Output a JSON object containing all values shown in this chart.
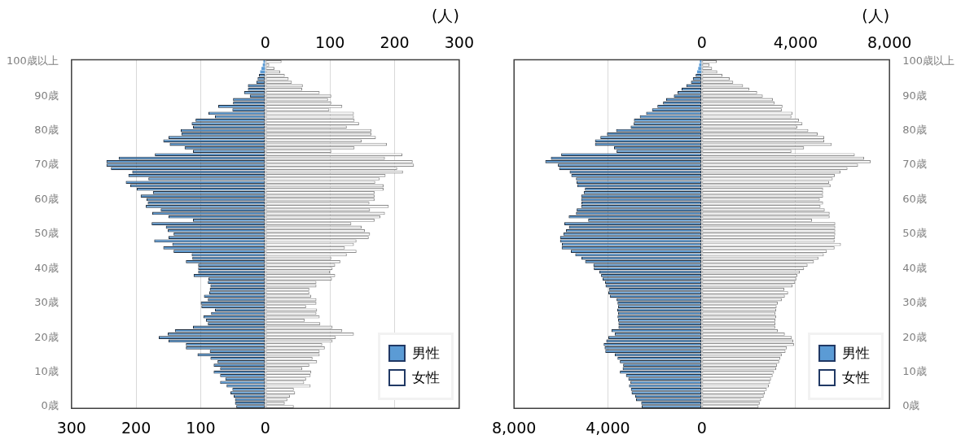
{
  "chart_data": [
    {
      "type": "bar",
      "orientation": "horizontal",
      "stacked": true,
      "x2label": "(人)",
      "categories": [
        "100歳以上",
        null,
        null,
        null,
        null,
        null,
        null,
        null,
        null,
        null,
        "90歳",
        null,
        null,
        null,
        null,
        null,
        null,
        null,
        null,
        null,
        "80歳",
        null,
        null,
        null,
        null,
        null,
        null,
        null,
        null,
        null,
        "70歳",
        null,
        null,
        null,
        null,
        null,
        null,
        null,
        null,
        null,
        "60歳",
        null,
        null,
        null,
        null,
        null,
        null,
        null,
        null,
        null,
        "50歳",
        null,
        null,
        null,
        null,
        null,
        null,
        null,
        null,
        null,
        "40歳",
        null,
        null,
        null,
        null,
        null,
        null,
        null,
        null,
        null,
        "30歳",
        null,
        null,
        null,
        null,
        null,
        null,
        null,
        null,
        null,
        "20歳",
        null,
        null,
        null,
        null,
        null,
        null,
        null,
        null,
        null,
        "10歳",
        null,
        null,
        null,
        null,
        null,
        null,
        null,
        null,
        null,
        "0歳"
      ],
      "xlim": [
        -300,
        300
      ],
      "xticks": [
        {
          "value": -300,
          "label": "300"
        },
        {
          "value": -200,
          "label": "200"
        },
        {
          "value": -100,
          "label": "100"
        },
        0
      ],
      "x2lim": [
        -300,
        300
      ],
      "x2ticks": [
        0,
        100,
        200,
        300
      ],
      "grid": "x",
      "legend": "bottom right",
      "series": [
        {
          "name": "男性",
          "color": "#5b9bd5",
          "values": [
            -3,
            -4,
            -6,
            -8,
            -10,
            -12,
            -14,
            -27,
            -27,
            -33,
            -24,
            -50,
            -50,
            -73,
            -51,
            -88,
            -78,
            -108,
            -114,
            -112,
            -131,
            -130,
            -150,
            -158,
            -148,
            -125,
            -112,
            -171,
            -227,
            -246,
            -246,
            -239,
            -206,
            -212,
            -181,
            -216,
            -209,
            -199,
            -174,
            -193,
            -184,
            -182,
            -185,
            -162,
            -175,
            -150,
            -112,
            -176,
            -154,
            -151,
            -142,
            -150,
            -172,
            -144,
            -158,
            -142,
            -114,
            -113,
            -123,
            -104,
            -104,
            -104,
            -111,
            -88,
            -89,
            -85,
            -86,
            -87,
            -95,
            -89,
            -100,
            -99,
            -78,
            -84,
            -96,
            -92,
            -89,
            -112,
            -140,
            -151,
            -165,
            -150,
            -123,
            -123,
            -86,
            -105,
            -85,
            -74,
            -80,
            -70,
            -80,
            -70,
            -62,
            -70,
            -60,
            -51,
            -54,
            -49,
            -47,
            -47,
            -45
          ]
        },
        {
          "name": "女性",
          "color": "#ffffff",
          "values": [
            25,
            6,
            14,
            23,
            30,
            36,
            41,
            58,
            57,
            84,
            102,
            97,
            102,
            119,
            99,
            137,
            137,
            138,
            145,
            126,
            164,
            164,
            171,
            149,
            188,
            138,
            102,
            212,
            185,
            228,
            230,
            204,
            213,
            186,
            177,
            170,
            183,
            183,
            169,
            169,
            169,
            161,
            191,
            162,
            185,
            178,
            169,
            133,
            149,
            154,
            162,
            160,
            141,
            137,
            123,
            141,
            126,
            102,
            116,
            108,
            104,
            100,
            108,
            103,
            79,
            79,
            68,
            68,
            71,
            79,
            79,
            63,
            80,
            79,
            84,
            61,
            85,
            104,
            119,
            137,
            109,
            104,
            88,
            92,
            84,
            84,
            73,
            80,
            68,
            57,
            71,
            70,
            63,
            60,
            70,
            44,
            46,
            38,
            34,
            30,
            44
          ]
        }
      ]
    },
    {
      "type": "bar",
      "orientation": "horizontal",
      "stacked": true,
      "x2label": "(人)",
      "categories": [
        "100歳以上",
        null,
        null,
        null,
        null,
        null,
        null,
        null,
        null,
        null,
        "90歳",
        null,
        null,
        null,
        null,
        null,
        null,
        null,
        null,
        null,
        "80歳",
        null,
        null,
        null,
        null,
        null,
        null,
        null,
        null,
        null,
        "70歳",
        null,
        null,
        null,
        null,
        null,
        null,
        null,
        null,
        null,
        "60歳",
        null,
        null,
        null,
        null,
        null,
        null,
        null,
        null,
        null,
        "50歳",
        null,
        null,
        null,
        null,
        null,
        null,
        null,
        null,
        null,
        "40歳",
        null,
        null,
        null,
        null,
        null,
        null,
        null,
        null,
        null,
        "30歳",
        null,
        null,
        null,
        null,
        null,
        null,
        null,
        null,
        null,
        "20歳",
        null,
        null,
        null,
        null,
        null,
        null,
        null,
        null,
        null,
        "10歳",
        null,
        null,
        null,
        null,
        null,
        null,
        null,
        null,
        null,
        "0歳"
      ],
      "xlim": [
        -8000,
        8000
      ],
      "xticks": [
        {
          "value": -8000,
          "label": "8,000"
        },
        {
          "value": -4000,
          "label": "4,000"
        },
        0
      ],
      "x2lim": [
        -8000,
        8000
      ],
      "x2ticks": [
        0,
        {
          "value": 4000,
          "label": "4,000"
        },
        {
          "value": 8000,
          "label": "8,000"
        }
      ],
      "grid": "x",
      "legend": "bottom right",
      "series": [
        {
          "name": "男性",
          "color": "#5b9bd5",
          "values": [
            -80,
            -110,
            -150,
            -200,
            -260,
            -380,
            -460,
            -660,
            -860,
            -1030,
            -1190,
            -1520,
            -1650,
            -1890,
            -2120,
            -2370,
            -2640,
            -2890,
            -2900,
            -3030,
            -3650,
            -4040,
            -4320,
            -4550,
            -4550,
            -3740,
            -3630,
            -5990,
            -6430,
            -6670,
            -6130,
            -6080,
            -5630,
            -5560,
            -5360,
            -5340,
            -5310,
            -4980,
            -5030,
            -5140,
            -5140,
            -5130,
            -5140,
            -5330,
            -5360,
            -5670,
            -4840,
            -5860,
            -5660,
            -5790,
            -5900,
            -6040,
            -6040,
            -5960,
            -5970,
            -5580,
            -5390,
            -5130,
            -4970,
            -4620,
            -4600,
            -4370,
            -4290,
            -4230,
            -4120,
            -4100,
            -3960,
            -3980,
            -3920,
            -3630,
            -3590,
            -3570,
            -3600,
            -3570,
            -3590,
            -3570,
            -3550,
            -3550,
            -3850,
            -3710,
            -3980,
            -4070,
            -4180,
            -4140,
            -4110,
            -3710,
            -3590,
            -3490,
            -3350,
            -3370,
            -3490,
            -3230,
            -3130,
            -3040,
            -3100,
            -3020,
            -2990,
            -2840,
            -2800,
            -2580,
            -2560
          ]
        },
        {
          "name": "女性",
          "color": "#ffffff",
          "values": [
            640,
            330,
            440,
            660,
            880,
            1190,
            1340,
            1760,
            2030,
            2360,
            2600,
            3030,
            3110,
            3440,
            3410,
            3870,
            3820,
            4140,
            4290,
            4070,
            4540,
            4940,
            5220,
            5220,
            5540,
            4360,
            3820,
            6520,
            6920,
            7200,
            6660,
            6210,
            5910,
            5670,
            5580,
            5430,
            5490,
            5170,
            5170,
            5170,
            5030,
            5170,
            5060,
            5240,
            5450,
            5450,
            4700,
            5690,
            5690,
            5690,
            5690,
            5680,
            5660,
            5930,
            5660,
            5330,
            5200,
            4970,
            4780,
            4510,
            4360,
            4180,
            4070,
            4030,
            3980,
            3870,
            3520,
            3680,
            3540,
            3410,
            3240,
            3190,
            3170,
            3140,
            3170,
            3140,
            3140,
            3130,
            3240,
            3540,
            3840,
            3900,
            3930,
            3630,
            3570,
            3410,
            3350,
            3300,
            3210,
            3170,
            3080,
            3020,
            2950,
            2910,
            2860,
            2770,
            2690,
            2640,
            2530,
            2470,
            2420
          ]
        }
      ]
    }
  ]
}
